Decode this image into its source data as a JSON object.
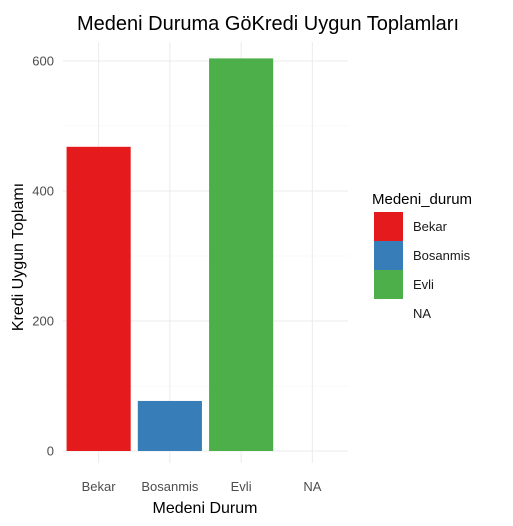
{
  "chart_data": {
    "type": "bar",
    "title": "Medeni Duruma GöKredi Uygun Toplamları",
    "xlabel": "Medeni Durum",
    "ylabel": "Kredi Uygun Toplamı",
    "categories": [
      "Bekar",
      "Bosanmis",
      "Evli",
      "NA"
    ],
    "values": [
      468,
      77,
      604,
      0
    ],
    "ylim": [
      0,
      630
    ],
    "yticks": [
      0,
      200,
      400,
      600
    ],
    "grid": true,
    "legend": {
      "title": "Medeni_durum",
      "placement": "right",
      "entries": [
        "Bekar",
        "Bosanmis",
        "Evli",
        "NA"
      ]
    },
    "colors": [
      "#E41A1C",
      "#377EB8",
      "#4DAF4A",
      "#ffffff"
    ]
  }
}
